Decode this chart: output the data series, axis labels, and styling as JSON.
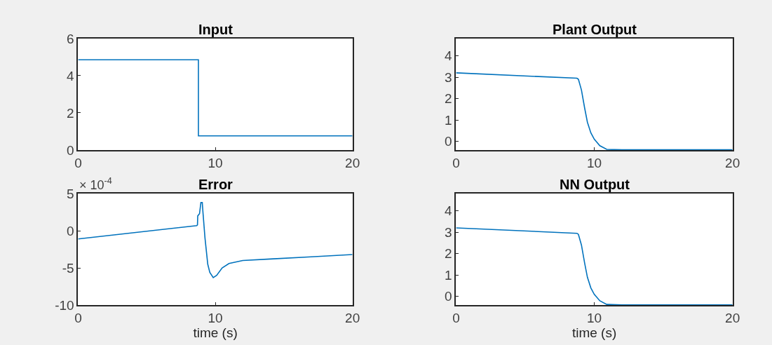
{
  "chart_data": [
    {
      "type": "line",
      "title": "Input",
      "x": [
        0,
        8.77,
        8.77,
        20
      ],
      "series": [
        {
          "color": "#0072bd",
          "values": [
            4.86,
            4.86,
            0.76,
            0.76
          ]
        }
      ],
      "xlim": [
        0,
        20
      ],
      "xticks": [
        0,
        10,
        20
      ],
      "ylim": [
        0,
        6
      ],
      "yticks": [
        0,
        2,
        4,
        6
      ]
    },
    {
      "type": "line",
      "title": "Plant Output",
      "x": [
        0,
        8.74,
        8.85,
        9.07,
        9.3,
        9.5,
        9.75,
        10.0,
        10.4,
        10.9,
        12,
        20
      ],
      "series": [
        {
          "color": "#0072bd",
          "values": [
            3.2,
            2.95,
            2.9,
            2.4,
            1.56,
            0.9,
            0.4,
            0.1,
            -0.2,
            -0.37,
            -0.39,
            -0.39
          ]
        }
      ],
      "xlim": [
        0,
        20
      ],
      "xticks": [
        0,
        10,
        20
      ],
      "ylim": [
        -0.4,
        4.8
      ],
      "yticks": [
        0,
        1,
        2,
        3,
        4
      ]
    },
    {
      "type": "line",
      "title": "Error",
      "xlabel": "time (s)",
      "annotations": [
        "× 10$^{-4}$"
      ],
      "x": [
        0,
        8.65,
        8.7,
        8.72,
        8.85,
        8.95,
        9.05,
        9.1,
        9.25,
        9.45,
        9.6,
        9.85,
        10.1,
        10.5,
        11,
        12,
        14,
        17,
        20
      ],
      "series": [
        {
          "color": "#0072bd",
          "values": [
            -1.1,
            0.7,
            0.8,
            2.0,
            2.3,
            3.8,
            3.8,
            2.5,
            -1,
            -4.5,
            -5.6,
            -6.3,
            -6.0,
            -5.0,
            -4.4,
            -4.0,
            -3.8,
            -3.5,
            -3.2
          ]
        }
      ],
      "xlim": [
        0,
        20
      ],
      "xticks": [
        0,
        10,
        20
      ],
      "ylim": [
        -10,
        5
      ],
      "yticks": [
        -10,
        -5,
        0,
        5
      ]
    },
    {
      "type": "line",
      "title": "NN Output",
      "xlabel": "time (s)",
      "x": [
        0,
        8.74,
        8.85,
        9.07,
        9.3,
        9.5,
        9.75,
        10.0,
        10.4,
        10.9,
        12,
        20
      ],
      "series": [
        {
          "color": "#0072bd",
          "values": [
            3.2,
            2.95,
            2.9,
            2.4,
            1.56,
            0.9,
            0.4,
            0.1,
            -0.2,
            -0.37,
            -0.39,
            -0.39
          ]
        }
      ],
      "xlim": [
        0,
        20
      ],
      "xticks": [
        0,
        10,
        20
      ],
      "ylim": [
        -0.4,
        4.8
      ],
      "yticks": [
        0,
        1,
        2,
        3,
        4
      ]
    }
  ]
}
